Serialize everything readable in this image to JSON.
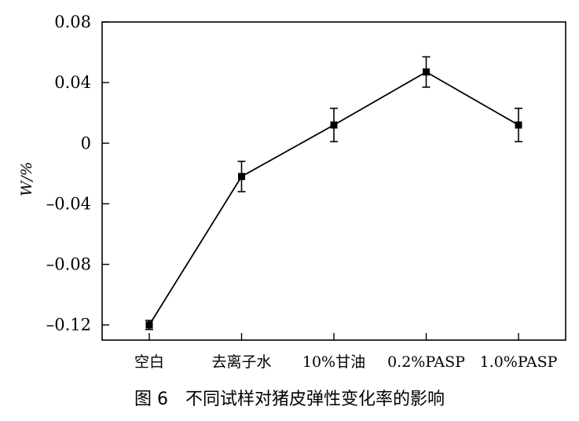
{
  "caption": "图 6　不同试样对猪皮弹性变化率的影响",
  "chart_data": {
    "type": "line",
    "ylabel": "W/%",
    "xlabel": "",
    "ylim": [
      -0.13,
      0.08
    ],
    "yticks": [
      0.08,
      0.04,
      0,
      -0.04,
      -0.08,
      -0.12
    ],
    "ytick_labels": [
      "0.08",
      "0.04",
      "0",
      "–0.04",
      "–0.08",
      "–0.12"
    ],
    "categories": [
      "空白",
      "去离子水",
      "10%甘油",
      "0.2%PASP",
      "1.0%PASP"
    ],
    "values": [
      -0.12,
      -0.022,
      0.012,
      0.047,
      0.012
    ],
    "errors": [
      0.003,
      0.01,
      0.011,
      0.01,
      0.011
    ],
    "grid": false,
    "legend": "none",
    "line_color": "#000000",
    "marker": "square"
  }
}
